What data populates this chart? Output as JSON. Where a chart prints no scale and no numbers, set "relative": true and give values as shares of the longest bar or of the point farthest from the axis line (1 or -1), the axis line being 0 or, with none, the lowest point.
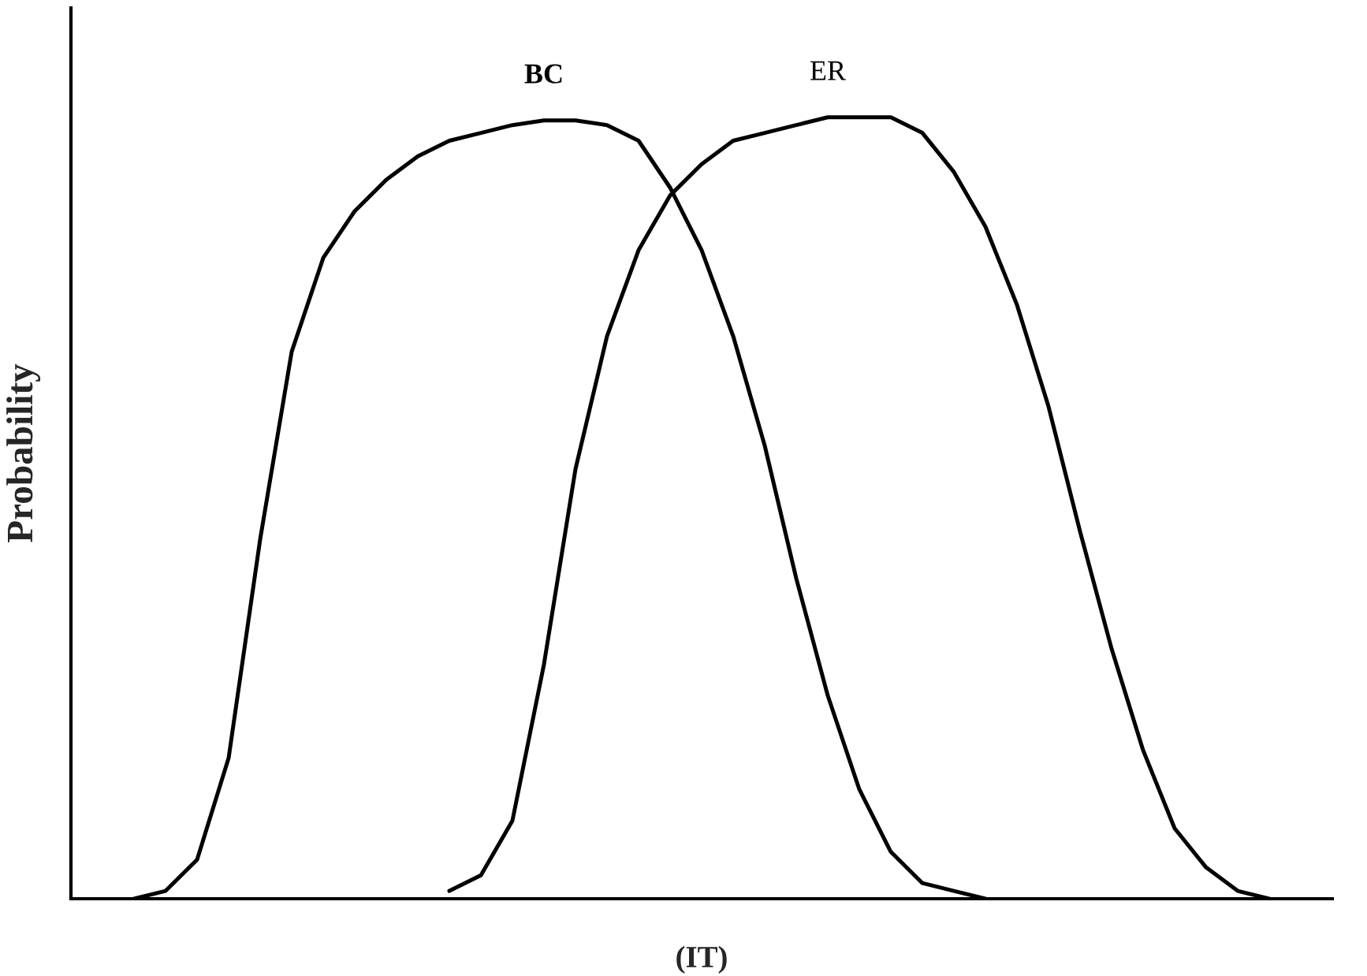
{
  "chart_data": {
    "type": "line",
    "relative": true,
    "xlabel": "(IT)",
    "ylabel": "Probability",
    "categories": [
      null,
      null,
      null,
      null,
      null,
      null,
      null,
      null,
      null,
      null,
      null,
      null,
      null,
      null,
      null,
      null,
      null,
      null,
      null,
      null,
      null,
      null,
      null,
      null,
      null,
      null,
      null,
      null,
      null,
      null,
      null,
      null,
      null,
      null,
      null,
      null,
      null,
      null,
      null,
      null,
      null
    ],
    "series": [
      {
        "name": "BC",
        "color": "#000000",
        "values": [
          null,
          null,
          0,
          0.01,
          0.05,
          0.18,
          0.46,
          0.7,
          0.82,
          0.88,
          0.92,
          0.95,
          0.97,
          0.98,
          0.99,
          0.996,
          0.996,
          0.99,
          0.97,
          0.91,
          0.83,
          0.72,
          0.58,
          0.41,
          0.26,
          0.14,
          0.06,
          0.02,
          0.01,
          0,
          null,
          null,
          null,
          null,
          null,
          null,
          null,
          null,
          null,
          null,
          null
        ]
      },
      {
        "name": "ER",
        "color": "#000000",
        "values": [
          null,
          null,
          null,
          null,
          null,
          null,
          null,
          null,
          null,
          null,
          null,
          null,
          0.01,
          0.03,
          0.1,
          0.3,
          0.55,
          0.72,
          0.83,
          0.9,
          0.94,
          0.97,
          0.98,
          0.99,
          1.0,
          1.0,
          1.0,
          0.98,
          0.93,
          0.86,
          0.76,
          0.63,
          0.47,
          0.32,
          0.19,
          0.09,
          0.04,
          0.01,
          0,
          null,
          null
        ]
      }
    ]
  }
}
